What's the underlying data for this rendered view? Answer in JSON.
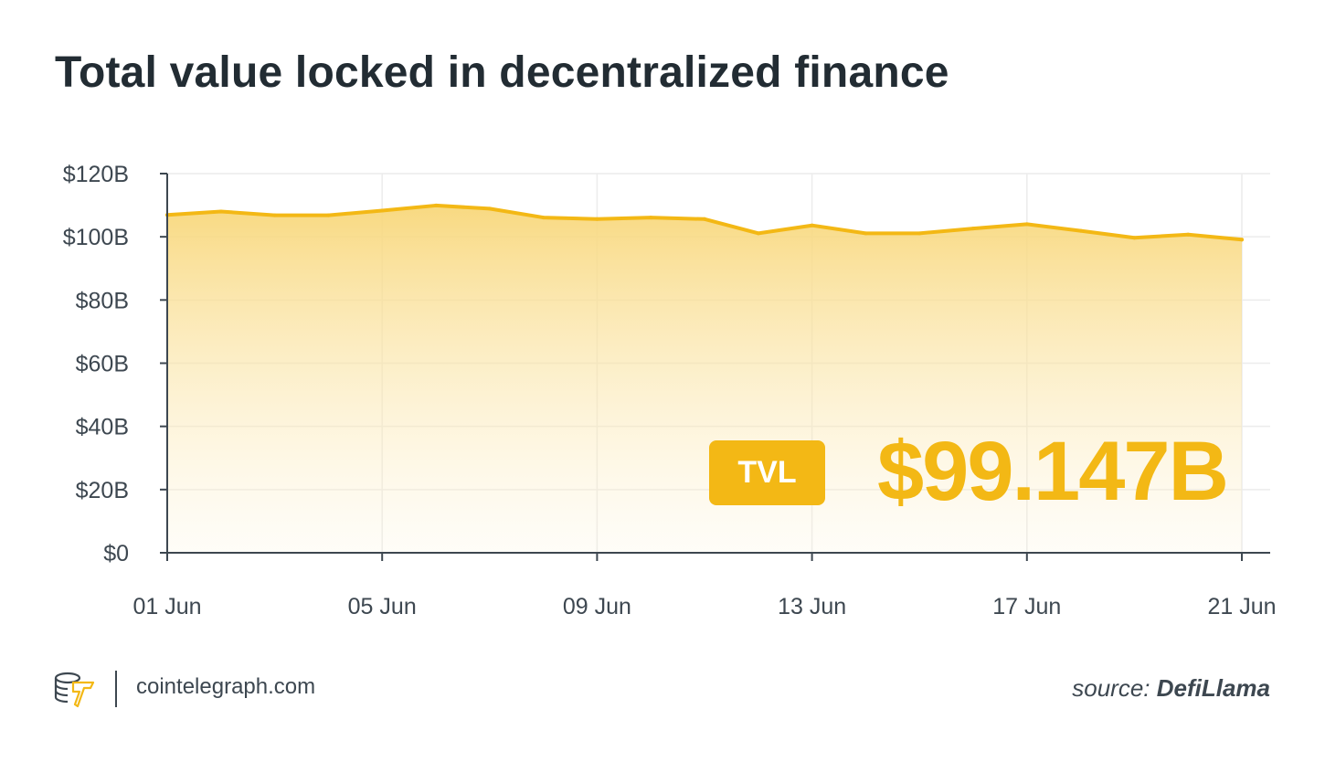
{
  "title": "Total value locked in decentralized finance",
  "badge": {
    "label": "TVL",
    "value": "$99.147B"
  },
  "footer": {
    "site": "cointelegraph.com",
    "source_prefix": "source:",
    "source_name": "DefiLlama",
    "logo_icon": "cointelegraph-logo-icon"
  },
  "colors": {
    "accent": "#f3b815",
    "text": "#222c33",
    "axis": "#3d4750",
    "grid": "#ececec"
  },
  "chart_data": {
    "type": "area",
    "x": [
      "01 Jun",
      "02 Jun",
      "03 Jun",
      "04 Jun",
      "05 Jun",
      "06 Jun",
      "07 Jun",
      "08 Jun",
      "09 Jun",
      "10 Jun",
      "11 Jun",
      "12 Jun",
      "13 Jun",
      "14 Jun",
      "15 Jun",
      "16 Jun",
      "17 Jun",
      "18 Jun",
      "19 Jun",
      "20 Jun",
      "21 Jun"
    ],
    "series": [
      {
        "values": [
          106.9,
          108.0,
          106.8,
          106.8,
          108.3,
          109.9,
          108.9,
          106.1,
          105.6,
          106.1,
          105.6,
          101.1,
          103.6,
          101.1,
          101.1,
          102.6,
          104.0,
          101.9,
          99.7,
          100.7,
          99.1
        ]
      }
    ],
    "x_ticks": [
      "01 Jun",
      "05 Jun",
      "09 Jun",
      "13 Jun",
      "17 Jun",
      "21 Jun"
    ],
    "y_ticks": [
      "$0",
      "$20B",
      "$40B",
      "$60B",
      "$80B",
      "$100B",
      "$120B"
    ],
    "ylim": [
      0,
      120
    ],
    "xlabel": "",
    "ylabel": "",
    "grid": true
  }
}
